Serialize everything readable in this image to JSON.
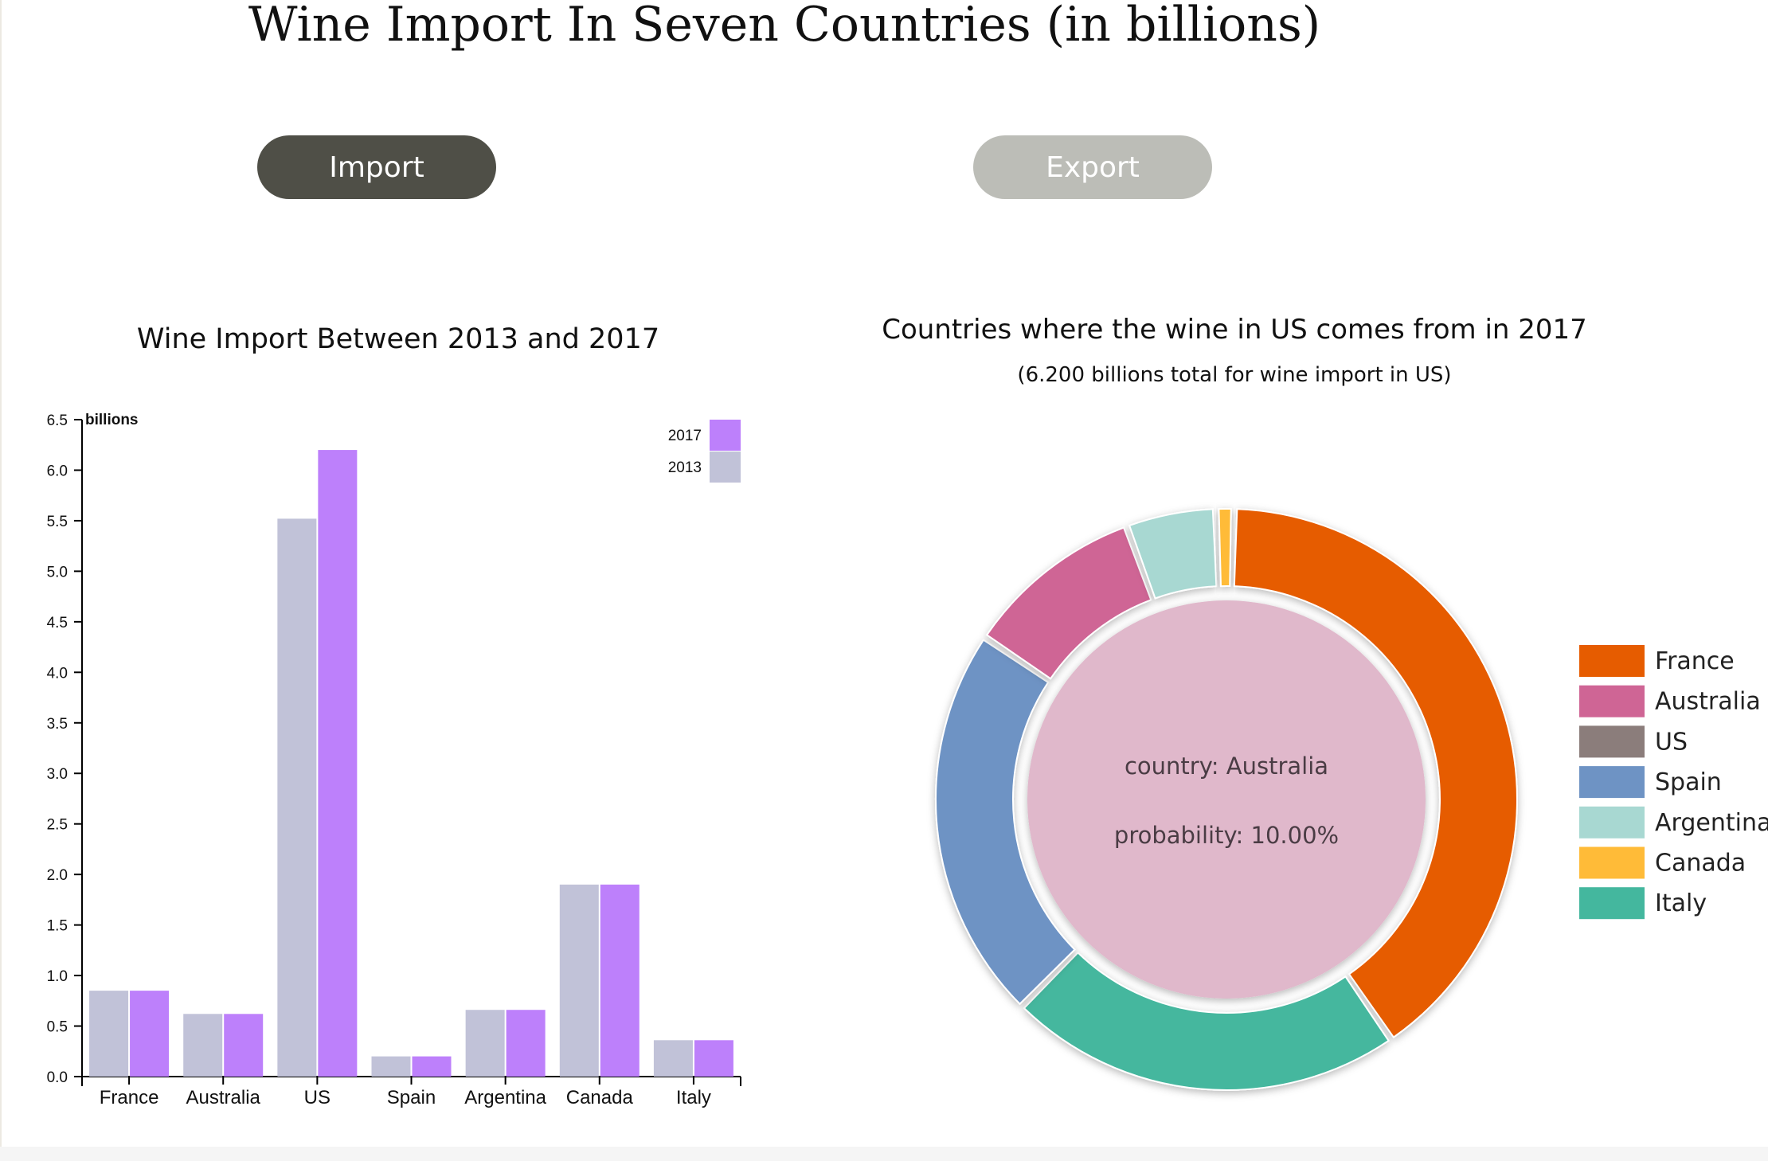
{
  "page": {
    "title": "Wine Import In Seven Countries (in billions)",
    "buttons": {
      "import_label": "Import",
      "export_label": "Export"
    }
  },
  "bar_chart": {
    "title": "Wine Import Between 2013 and 2017",
    "y_unit_label": "billions"
  },
  "donut_chart": {
    "title": "Countries where the wine in US comes from in 2017",
    "subtitle": "(6.200 billions total for wine import in US)",
    "center_country": "country: Australia",
    "center_probability": "probability: 10.00%"
  },
  "colors": {
    "series_2013": "#c1c2d8",
    "series_2017": "#bd80fb",
    "France": "#e65c00",
    "Australia": "#cf6595",
    "US": "#8b7d7b",
    "Spain": "#6e93c4",
    "Argentina": "#a8d8d2",
    "Canada": "#ffbb38",
    "Italy": "#44b79e",
    "donut_center": "#e0b8cb"
  },
  "chart_data": [
    {
      "type": "bar",
      "title": "Wine Import Between 2013 and 2017",
      "ylabel": "billions",
      "categories": [
        "France",
        "Australia",
        "US",
        "Spain",
        "Argentina",
        "Canada",
        "Italy"
      ],
      "series": [
        {
          "name": "2013",
          "values": [
            0.85,
            0.62,
            5.52,
            0.2,
            0.66,
            1.9,
            0.36
          ]
        },
        {
          "name": "2017",
          "values": [
            0.85,
            0.62,
            6.2,
            0.2,
            0.66,
            1.9,
            0.36
          ]
        }
      ],
      "ylim": [
        0,
        6.5
      ],
      "yticks": [
        "0.0",
        "0.5",
        "1.0",
        "1.5",
        "2.0",
        "2.5",
        "3.0",
        "3.5",
        "4.0",
        "4.5",
        "5.0",
        "5.5",
        "6.0",
        "6.5"
      ],
      "grid": false,
      "legend": "top-right"
    },
    {
      "type": "pie",
      "title": "Countries where the wine in US comes from in 2017",
      "subtitle": "(6.200 billions total for wine import in US)",
      "categories": [
        "France",
        "Australia",
        "US",
        "Spain",
        "Argentina",
        "Canada",
        "Italy"
      ],
      "values": [
        0.4,
        0.1,
        0.0,
        0.22,
        0.05,
        0.01,
        0.22
      ],
      "slice_order": [
        "France",
        "Italy",
        "Spain",
        "Australia",
        "Argentina",
        "Canada"
      ],
      "legend": "right",
      "donut": true
    }
  ]
}
